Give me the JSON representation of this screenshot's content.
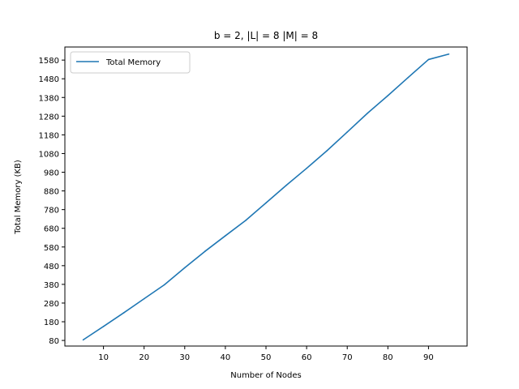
{
  "chart_data": {
    "type": "line",
    "title": "b = 2, |L| = 8 |M| = 8",
    "xlabel": "Number of Nodes",
    "ylabel": "Total Memory (KB)",
    "xlim": [
      0.5,
      99.5
    ],
    "ylim": [
      50,
      1650
    ],
    "xticks": [
      10,
      20,
      30,
      40,
      50,
      60,
      70,
      80,
      90
    ],
    "yticks": [
      80,
      180,
      280,
      380,
      480,
      580,
      680,
      780,
      880,
      980,
      1080,
      1180,
      1280,
      1380,
      1480,
      1580
    ],
    "grid": false,
    "legend_position": "top-left",
    "series": [
      {
        "name": "Total Memory",
        "color": "#1f77b4",
        "x": [
          5,
          10,
          15,
          20,
          25,
          30,
          35,
          40,
          45,
          50,
          55,
          60,
          65,
          70,
          75,
          80,
          85,
          90,
          95
        ],
        "y": [
          83,
          155,
          228,
          303,
          378,
          469,
          557,
          640,
          722,
          816,
          910,
          1001,
          1095,
          1195,
          1296,
          1390,
          1487,
          1583,
          1612
        ]
      }
    ]
  }
}
